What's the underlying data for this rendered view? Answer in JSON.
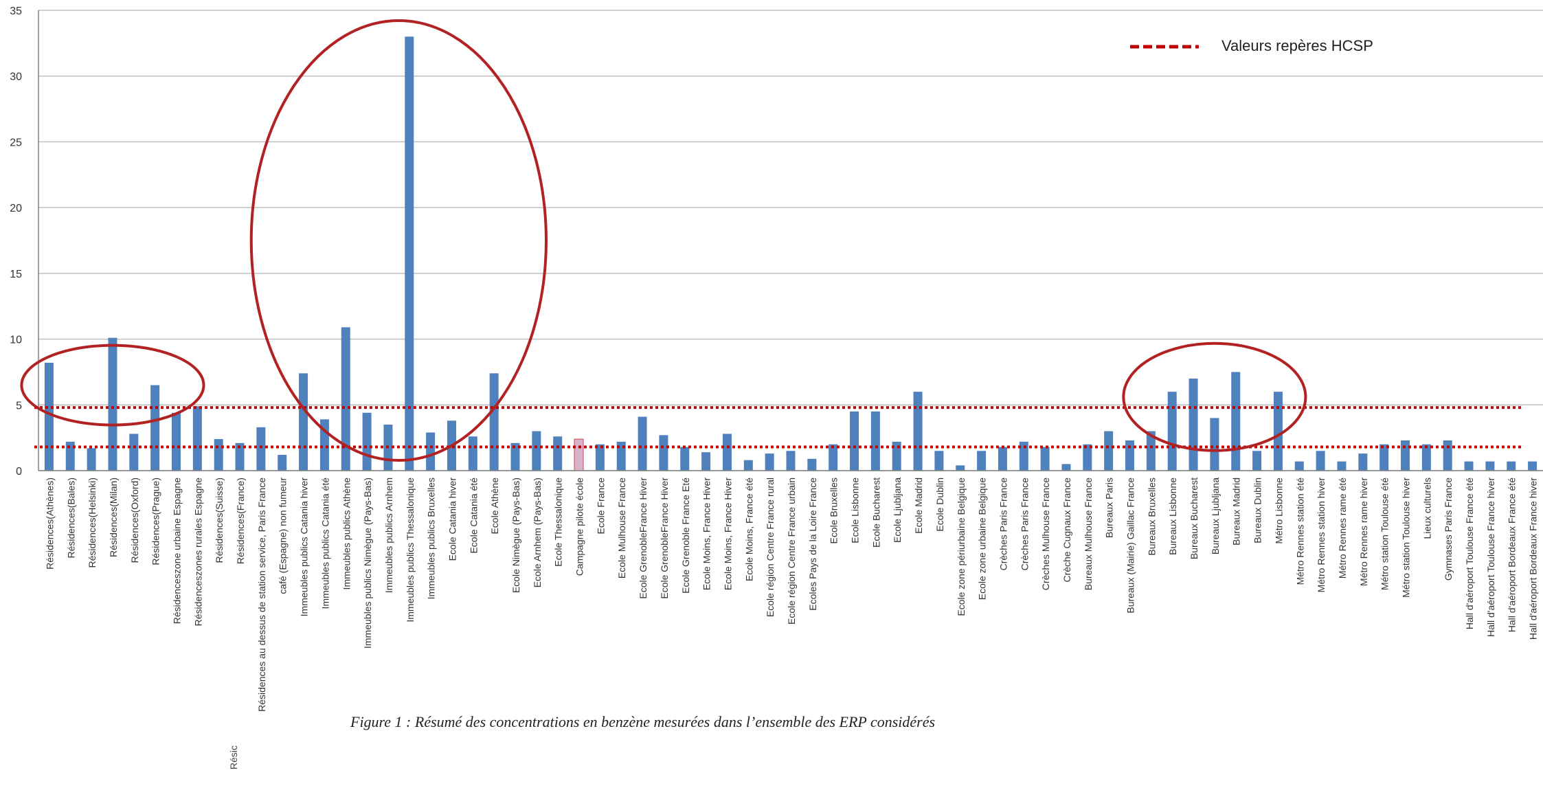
{
  "chart_data": {
    "type": "bar",
    "ylim": [
      0,
      35
    ],
    "yticks": [
      "0",
      "5",
      "10",
      "15",
      "20",
      "25",
      "30",
      "35"
    ],
    "grid": true,
    "legend": {
      "label": "Valeurs repères HCSP",
      "placement": "top-right"
    },
    "reference_lines": [
      4.8,
      1.8
    ],
    "colors": {
      "bar": "#4f81bd",
      "bar_highlight": "#d9b3c9",
      "reference": "#c00000",
      "ellipse": "#b22222",
      "grid": "#bfbfbf",
      "axis": "#808080"
    },
    "categories": [
      "Résidences(Athènes)",
      "Résidences(Bales)",
      "Résidences(Helsinki)",
      "Résidences(Milan)",
      "Résidences(Oxford)",
      "Résidences(Prague)",
      "Résidenceszone urbaine Espagne",
      "Résidenceszones rurales Espagne",
      "Résidences(Suisse)",
      "Résidences(France)",
      "Résidences au dessus de station  service, Paris France",
      "café (Espagne) non fumeur",
      "Immeubles publics Catania hiver",
      "Immeubles publics Catania été",
      "Immeubles publics Athène",
      "Immeubles publics Nimègue (Pays-Bas)",
      "Immeubles publics Arnhem",
      "Immeubles publics Thessalonique",
      "Immeubles publics Bruxelles",
      "Ecole Catania hiver",
      "Ecole Catania été",
      "Ecole Athène",
      "Ecole Nimègue  (Pays-Bas)",
      "Ecole Arnhem (Pays-Bas)",
      "Ecole Thessalonique",
      "Campagne pilote école",
      "Ecole France",
      "Ecole Mulhouse France",
      "Ecole GrenobleFrance Hiver",
      "Ecole GrenobleFrance Hiver",
      "Ecole Grenoble France Eté",
      "Ecole Moins, France Hiver",
      "Ecole Moins, France Hiver",
      "Ecole Moins, France été",
      "Ecole région Centre France rural",
      "Ecole région Centre France urbain",
      "Ecoles Pays de la Loire France",
      "Ecole  Bruxelles",
      "Ecole Lisbonne",
      "Ecole Bucharest",
      "Ecole Ljubljana",
      "Ecole Madrid",
      "Ecole Dublin",
      "Ecole zone périurbaine Belgique",
      "Ecole zone urbaine Belgique",
      "Crèches Paris France",
      "Crèches Paris France",
      "Crèches Mulhouse France",
      "Crèche Cugnaux France",
      "Bureaux Mulhouse France",
      "Bureaux Paris",
      "Bureaux (Mairie) Gaillac France",
      "Bureaux  Bruxelles",
      "Bureaux Lisbonne",
      "Bureaux Bucharest",
      "Bureaux Ljubljana",
      "Bureaux Madrid",
      "Bureaux Dublin",
      "Métro Lisbonne",
      "Métro Rennes station  été",
      "Métro Rennes station  hiver",
      "Métro Rennes rame été",
      "Métro Rennes rame hiver",
      "Métro  station  Toulouse été",
      "Métro  station  Toulouse hiver",
      "Lieux culturels",
      "Gymnases Paris France",
      "Hall d'aéroport Toulouse France été",
      "Hall d'aéroport Toulouse France hiver",
      "Hall d'aéroport Bordeaux France été",
      "Hall d'aéroport Bordeaux France hiver"
    ],
    "values": [
      8.2,
      2.2,
      1.7,
      10.1,
      2.8,
      6.5,
      4.4,
      4.9,
      2.4,
      2.1,
      3.3,
      1.2,
      7.4,
      3.9,
      10.9,
      4.4,
      3.5,
      33.0,
      2.9,
      3.8,
      2.6,
      7.4,
      2.1,
      3.0,
      2.6,
      2.4,
      2.0,
      2.2,
      4.1,
      2.7,
      1.8,
      1.4,
      2.8,
      0.8,
      1.3,
      1.5,
      0.9,
      2.0,
      4.5,
      4.5,
      2.2,
      6.0,
      1.5,
      0.4,
      1.5,
      1.8,
      2.2,
      1.8,
      0.5,
      2.0,
      3.0,
      2.3,
      3.0,
      6.0,
      7.0,
      4.0,
      7.5,
      1.5,
      6.0,
      0.7,
      1.5,
      0.7,
      1.3,
      2.0,
      2.3,
      2.0,
      2.3,
      0.7,
      0.7,
      0.7,
      0.7
    ],
    "highlight_index": 25,
    "annotations": {
      "ellipses": [
        {
          "from_category": 0,
          "to_category": 6,
          "around_value": 6.5
        },
        {
          "from_category": 11,
          "to_category": 22,
          "around_value": 17.5
        },
        {
          "from_category": 52,
          "to_category": 58,
          "around_value": 5.6
        }
      ]
    }
  },
  "caption": "Figure 1 : Résumé des concentrations en benzène mesurées dans l’ensemble des ERP considérés",
  "stray_text": "Résic"
}
